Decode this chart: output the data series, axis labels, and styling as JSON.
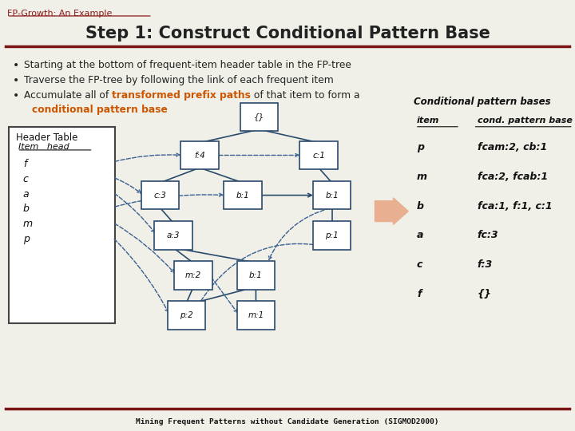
{
  "title": "Step 1: Construct Conditional Pattern Base",
  "subtitle": "FP-Growth: An Example",
  "bg_color": "#f0f0e8",
  "title_color": "#222222",
  "subtitle_color": "#8B1A1A",
  "dark_red": "#7B1515",
  "header_table_items": [
    "f",
    "c",
    "a",
    "b",
    "m",
    "p"
  ],
  "node_labels": {
    "root": "{}",
    "f4": "f:4",
    "c1": "c:1",
    "c3": "c:3",
    "b1a": "b:1",
    "b1b": "b:1",
    "a3": "a:3",
    "p1": "p:1",
    "m2": "m:2",
    "b1c": "b:1",
    "p2": "p:2",
    "m1": "m:1"
  },
  "cond_table": {
    "header1": "item",
    "header2": "cond. pattern base",
    "rows": [
      [
        "p",
        "fcam:2, cb:1"
      ],
      [
        "m",
        "fca:2, fcab:1"
      ],
      [
        "b",
        "fca:1, f:1, c:1"
      ],
      [
        "a",
        "fc:3"
      ],
      [
        "c",
        "f:3"
      ],
      [
        "f",
        "{}"
      ]
    ]
  },
  "cond_title": "Conditional pattern bases",
  "footer": "Mining Frequent Patterns without Candidate Generation (SIGMOD2000)",
  "node_border": "#2a4a6c",
  "tree_line_color": "#2a4a6c",
  "dashed_color": "#3a6090",
  "arrow_fill": "#e8b090"
}
